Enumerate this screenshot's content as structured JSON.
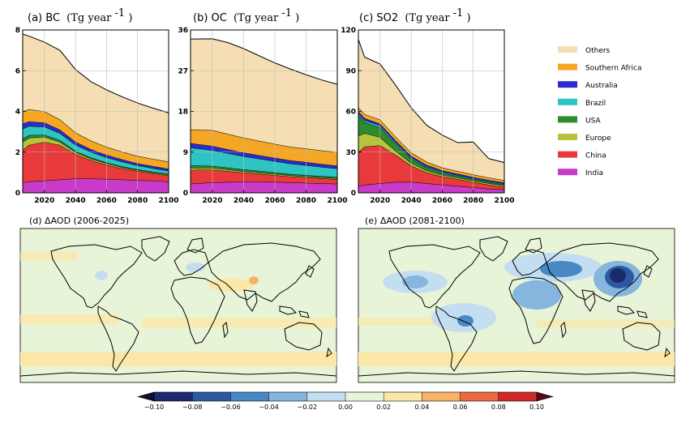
{
  "chart_data": [
    {
      "type": "area",
      "panel_label": "(a) BC",
      "unit_label": "(Tg year",
      "unit_exp": "-1",
      "x": [
        2006,
        2010,
        2020,
        2030,
        2040,
        2050,
        2060,
        2070,
        2080,
        2090,
        2100
      ],
      "xticks": [
        "2020",
        "2040",
        "2060",
        "2080",
        "2100"
      ],
      "xlim": [
        2006,
        2100
      ],
      "ylim": [
        0,
        8
      ],
      "yticks": [
        "0",
        "2",
        "4",
        "6",
        "8"
      ],
      "series": [
        {
          "name": "India",
          "values": [
            0.5,
            0.55,
            0.6,
            0.65,
            0.7,
            0.7,
            0.68,
            0.65,
            0.62,
            0.6,
            0.55
          ]
        },
        {
          "name": "China",
          "values": [
            1.6,
            1.8,
            1.9,
            1.7,
            1.2,
            0.9,
            0.7,
            0.55,
            0.45,
            0.35,
            0.3
          ]
        },
        {
          "name": "Europe",
          "values": [
            0.4,
            0.35,
            0.25,
            0.15,
            0.1,
            0.08,
            0.07,
            0.06,
            0.05,
            0.05,
            0.05
          ]
        },
        {
          "name": "USA",
          "values": [
            0.15,
            0.13,
            0.1,
            0.08,
            0.06,
            0.05,
            0.04,
            0.04,
            0.03,
            0.03,
            0.03
          ]
        },
        {
          "name": "Brazil",
          "values": [
            0.5,
            0.45,
            0.4,
            0.35,
            0.3,
            0.28,
            0.25,
            0.23,
            0.2,
            0.18,
            0.15
          ]
        },
        {
          "name": "Australia",
          "values": [
            0.25,
            0.22,
            0.2,
            0.17,
            0.15,
            0.13,
            0.12,
            0.11,
            0.1,
            0.1,
            0.1
          ]
        },
        {
          "name": "Southern Africa",
          "values": [
            0.6,
            0.6,
            0.55,
            0.5,
            0.45,
            0.42,
            0.4,
            0.38,
            0.36,
            0.35,
            0.35
          ]
        },
        {
          "name": "Others",
          "values": [
            3.8,
            3.6,
            3.4,
            3.4,
            3.1,
            2.9,
            2.8,
            2.7,
            2.6,
            2.5,
            2.4
          ]
        }
      ]
    },
    {
      "type": "area",
      "panel_label": "(b) OC",
      "unit_label": "(Tg year",
      "unit_exp": "-1",
      "x": [
        2006,
        2010,
        2020,
        2030,
        2040,
        2050,
        2060,
        2070,
        2080,
        2090,
        2100
      ],
      "xticks": [
        "2020",
        "2040",
        "2060",
        "2080",
        "2100"
      ],
      "xlim": [
        2006,
        2100
      ],
      "ylim": [
        0,
        36
      ],
      "yticks": [
        "0",
        "9",
        "18",
        "27",
        "36"
      ],
      "series": [
        {
          "name": "India",
          "values": [
            2.0,
            2.1,
            2.3,
            2.4,
            2.5,
            2.5,
            2.4,
            2.3,
            2.2,
            2.1,
            2.0
          ]
        },
        {
          "name": "China",
          "values": [
            3.0,
            3.0,
            2.8,
            2.4,
            2.0,
            1.7,
            1.5,
            1.3,
            1.2,
            1.1,
            1.0
          ]
        },
        {
          "name": "Europe",
          "values": [
            0.5,
            0.45,
            0.4,
            0.35,
            0.3,
            0.28,
            0.26,
            0.24,
            0.22,
            0.2,
            0.2
          ]
        },
        {
          "name": "USA",
          "values": [
            0.5,
            0.5,
            0.45,
            0.4,
            0.38,
            0.36,
            0.34,
            0.32,
            0.3,
            0.3,
            0.3
          ]
        },
        {
          "name": "Brazil",
          "values": [
            4.0,
            3.8,
            3.5,
            3.2,
            2.9,
            2.7,
            2.5,
            2.3,
            2.2,
            2.0,
            1.9
          ]
        },
        {
          "name": "Australia",
          "values": [
            1.0,
            0.95,
            0.9,
            0.85,
            0.8,
            0.75,
            0.72,
            0.7,
            0.68,
            0.65,
            0.6
          ]
        },
        {
          "name": "Southern Africa",
          "values": [
            3.0,
            3.2,
            3.5,
            3.4,
            3.3,
            3.2,
            3.1,
            3.0,
            3.0,
            3.0,
            3.0
          ]
        },
        {
          "name": "Others",
          "values": [
            20.0,
            20.0,
            20.2,
            20.2,
            19.7,
            18.8,
            17.9,
            17.2,
            16.3,
            15.6,
            15.0
          ]
        }
      ]
    },
    {
      "type": "area",
      "panel_label": "(c) SO2",
      "unit_label": "(Tg year",
      "unit_exp": "-1",
      "x": [
        2006,
        2010,
        2020,
        2030,
        2040,
        2050,
        2060,
        2070,
        2080,
        2090,
        2100
      ],
      "xticks": [
        "2020",
        "2040",
        "2060",
        "2080",
        "2100"
      ],
      "xlim": [
        2006,
        2100
      ],
      "ylim": [
        0,
        120
      ],
      "yticks": [
        "0",
        "30",
        "60",
        "90",
        "120"
      ],
      "series": [
        {
          "name": "India",
          "values": [
            5,
            6,
            7,
            8,
            8,
            7,
            6,
            5,
            4,
            3,
            2.5
          ]
        },
        {
          "name": "China",
          "values": [
            25,
            28,
            28,
            20,
            12,
            8,
            6,
            5,
            4,
            3,
            2
          ]
        },
        {
          "name": "Europe",
          "values": [
            12,
            10,
            6,
            3,
            2,
            1.5,
            1.2,
            1,
            1,
            1,
            1
          ]
        },
        {
          "name": "USA",
          "values": [
            15,
            8,
            7,
            5,
            3,
            2,
            1.5,
            1.2,
            1,
            0.8,
            0.7
          ]
        },
        {
          "name": "Brazil",
          "values": [
            1.5,
            1.5,
            1.5,
            1.2,
            1,
            0.9,
            0.8,
            0.8,
            0.7,
            0.7,
            0.6
          ]
        },
        {
          "name": "Australia",
          "values": [
            1.5,
            1.5,
            1.4,
            1.3,
            1.2,
            1.1,
            1,
            1,
            0.9,
            0.9,
            0.8
          ]
        },
        {
          "name": "Southern Africa",
          "values": [
            3,
            3,
            3,
            2.8,
            2.5,
            2.3,
            2.1,
            2,
            1.9,
            1.8,
            1.7
          ]
        },
        {
          "name": "Others",
          "values": [
            50,
            42,
            41,
            38,
            33,
            27,
            24,
            21,
            24,
            14,
            13
          ]
        }
      ]
    }
  ],
  "legend": {
    "items": [
      {
        "label": "Others",
        "color": "#f5deb3"
      },
      {
        "label": "Southern Africa",
        "color": "#f5a623"
      },
      {
        "label": "Australia",
        "color": "#2b2bd6"
      },
      {
        "label": "Brazil",
        "color": "#2ec4c4"
      },
      {
        "label": "USA",
        "color": "#2e8b2e"
      },
      {
        "label": "Europe",
        "color": "#b5c43a"
      },
      {
        "label": "China",
        "color": "#e83a3a"
      },
      {
        "label": "India",
        "color": "#c83ac8"
      }
    ]
  },
  "maps": [
    {
      "title": "(d) ΔAOD (2006-2025)"
    },
    {
      "title": "(e) ΔAOD (2081-2100)"
    }
  ],
  "colorbar": {
    "ticks": [
      "−0.10",
      "−0.08",
      "−0.06",
      "−0.04",
      "−0.02",
      "0.00",
      "0.02",
      "0.04",
      "0.06",
      "0.08",
      "0.10"
    ],
    "colors": [
      "#1a2a6c",
      "#2b5aa3",
      "#4a88c4",
      "#86b6dd",
      "#c3def0",
      "#e8f4d8",
      "#fbe7a8",
      "#f7b366",
      "#ec6b3c",
      "#cf2a28",
      "#8e0a1f"
    ]
  }
}
